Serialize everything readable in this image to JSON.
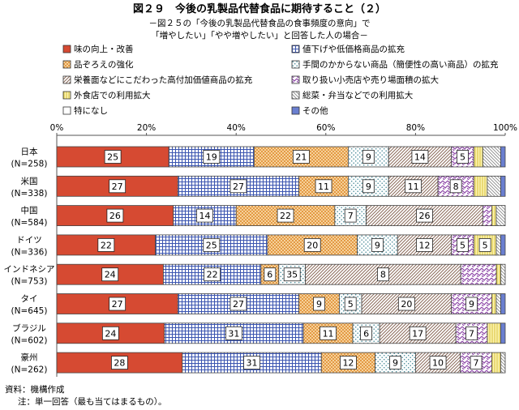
{
  "chart_data": {
    "type": "bar",
    "orientation": "horizontal",
    "stacked": "100%",
    "title": "図２９　今後の乳製品代替食品に期待すること（２）",
    "subtitle": [
      "－図２５の「今後の乳製品代替食品の食事頻度の意向」で",
      "「増やしたい」「やや増やしたい」と回答した人の場合－"
    ],
    "xlim": [
      0,
      100
    ],
    "xticks": [
      "0%",
      "20%",
      "40%",
      "60%",
      "80%",
      "100%"
    ],
    "legend_position": "top",
    "grid": false,
    "categories": [
      {
        "name": "日本",
        "n": "(N=258)"
      },
      {
        "name": "米国",
        "n": "(N=338)"
      },
      {
        "name": "中国",
        "n": "(N=584)"
      },
      {
        "name": "ドイツ",
        "n": "(N=336)"
      },
      {
        "name": "インドネシア",
        "n": "(N=753)"
      },
      {
        "name": "タイ",
        "n": "(N=645)"
      },
      {
        "name": "ブラジル",
        "n": "(N=602)"
      },
      {
        "name": "豪州",
        "n": "(N=262)"
      }
    ],
    "series": [
      {
        "name": "味の向上・改善",
        "pattern": "solid-red",
        "color": "#d64a32",
        "values": [
          25,
          27,
          26,
          22,
          24,
          27,
          24,
          28
        ]
      },
      {
        "name": "値下げや低価格商品の拡充",
        "pattern": "blue-grid",
        "color": "#4a63b8",
        "values": [
          19,
          27,
          14,
          25,
          22,
          27,
          31,
          31
        ]
      },
      {
        "name": "品ぞろえの強化",
        "pattern": "orange-check",
        "color": "#e8a354",
        "values": [
          21,
          11,
          22,
          20,
          4,
          9,
          11,
          12
        ]
      },
      {
        "name": "手間のかからない商品（簡便性の高い商品）の拡充",
        "pattern": "teal-dots",
        "color": "#5a9ea8",
        "values": [
          9,
          9,
          7,
          9,
          6,
          5,
          6,
          9
        ]
      },
      {
        "name": "栄養面などにこだわった高付加価値商品の拡充",
        "pattern": "brown-diag",
        "color": "#a08070",
        "values": [
          14,
          11,
          26,
          12,
          35,
          20,
          17,
          10
        ]
      },
      {
        "name": "取り扱い小売店や売り場面積の拡大",
        "pattern": "purple-zigzag",
        "color": "#9a5ab0",
        "values": [
          5,
          8,
          2,
          5,
          8,
          9,
          7,
          7
        ]
      },
      {
        "name": "外食店での利用拡大",
        "pattern": "yellow-vert",
        "color": "#e8d848",
        "values": [
          2,
          3,
          1,
          5,
          1,
          1,
          3,
          2
        ]
      },
      {
        "name": "総菜・弁当などでの利用拡大",
        "pattern": "gray-diag",
        "color": "#9a9a9a",
        "values": [
          4,
          3,
          2,
          1,
          1,
          1,
          0,
          1
        ]
      },
      {
        "name": "特になし",
        "pattern": "white",
        "color": "#ffffff",
        "values": [
          0,
          0,
          0,
          0,
          0,
          0,
          0,
          0
        ]
      },
      {
        "name": "その他",
        "pattern": "solid-blue",
        "color": "#6a7fd0",
        "values": [
          1,
          1,
          0,
          1,
          0,
          1,
          1,
          0
        ]
      }
    ],
    "value_labels_min": 4,
    "value_labels": [
      [
        25,
        19,
        21,
        9,
        14,
        5
      ],
      [
        27,
        27,
        11,
        9,
        11,
        8
      ],
      [
        26,
        14,
        22,
        7,
        26
      ],
      [
        22,
        25,
        20,
        9,
        12,
        5,
        5
      ],
      [
        24,
        22,
        6,
        35,
        8
      ],
      [
        27,
        27,
        9,
        5,
        20,
        9
      ],
      [
        24,
        31,
        11,
        6,
        17,
        7
      ],
      [
        28,
        31,
        12,
        9,
        10,
        7
      ]
    ]
  },
  "notes": {
    "source": "資料：機構作成",
    "note": "注：単一回答（最も当てはまるもの）。"
  }
}
